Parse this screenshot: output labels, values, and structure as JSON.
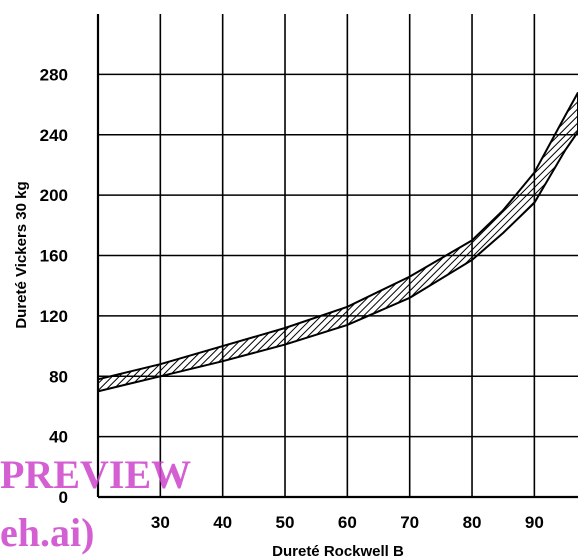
{
  "chart_data": {
    "type": "area",
    "xlabel": "Dureté Rockwell B",
    "ylabel": "Dureté Vickers 30 kg",
    "xlim": [
      20,
      97
    ],
    "ylim": [
      0,
      320
    ],
    "x_ticks": [
      30,
      40,
      50,
      60,
      70,
      80,
      90
    ],
    "y_ticks": [
      0,
      40,
      80,
      120,
      160,
      200,
      240,
      280
    ],
    "grid": true,
    "series": [
      {
        "fill": "hatched",
        "x": [
          20,
          30,
          40,
          50,
          60,
          70,
          80,
          85,
          90,
          95,
          97
        ],
        "upper": [
          78,
          88,
          100,
          112,
          126,
          146,
          170,
          190,
          215,
          253,
          268
        ],
        "lower": [
          70,
          80,
          90,
          101,
          114,
          132,
          157,
          175,
          195,
          230,
          242
        ]
      }
    ]
  },
  "watermark": {
    "line1": "PREVIEW",
    "line2": "eh.ai)"
  },
  "colors": {
    "ink": "#000000",
    "background": "#ffffff",
    "watermark": "#cc44cc"
  }
}
